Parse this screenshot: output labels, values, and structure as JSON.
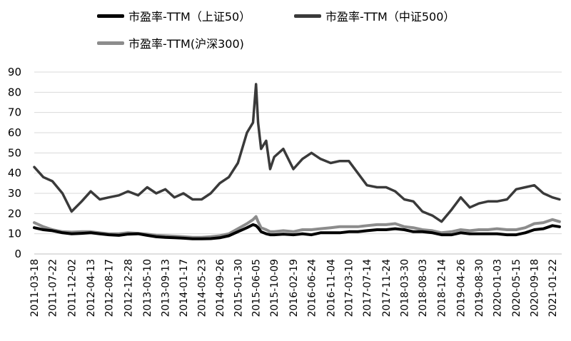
{
  "chart_data": {
    "type": "line",
    "title": "",
    "xlabel": "",
    "ylabel": "",
    "ylim": [
      0,
      90
    ],
    "yticks": [
      0,
      10,
      20,
      30,
      40,
      50,
      60,
      70,
      80,
      90
    ],
    "grid": "horizontal",
    "legend_position": "top",
    "x_tick_labels": [
      "2011-03-18",
      "2011-07-22",
      "2011-12-02",
      "2012-04-13",
      "2012-08-17",
      "2012-12-28",
      "2013-05-10",
      "2013-09-13",
      "2014-01-17",
      "2014-05-23",
      "2014-09-26",
      "2015-01-30",
      "2015-06-05",
      "2015-10-09",
      "2016-02-19",
      "2016-06-24",
      "2016-11-04",
      "2017-03-10",
      "2017-07-14",
      "2017-11-24",
      "2018-03-30",
      "2018-08-03",
      "2018-12-14",
      "2019-04-26",
      "2019-08-30",
      "2020-01-03",
      "2020-05-15",
      "2020-09-18",
      "2021-01-22"
    ],
    "x": [
      "2011-03-18",
      "2011-05-20",
      "2011-07-22",
      "2011-09-30",
      "2011-12-02",
      "2012-02-10",
      "2012-04-13",
      "2012-06-15",
      "2012-08-17",
      "2012-10-26",
      "2012-12-28",
      "2013-03-08",
      "2013-05-10",
      "2013-07-12",
      "2013-09-13",
      "2013-11-15",
      "2014-01-17",
      "2014-03-21",
      "2014-05-23",
      "2014-07-25",
      "2014-09-26",
      "2014-11-28",
      "2015-01-30",
      "2015-04-03",
      "2015-05-15",
      "2015-06-05",
      "2015-06-19",
      "2015-07-10",
      "2015-08-14",
      "2015-09-11",
      "2015-10-09",
      "2015-12-11",
      "2016-02-19",
      "2016-04-22",
      "2016-06-24",
      "2016-08-26",
      "2016-11-04",
      "2017-01-06",
      "2017-03-10",
      "2017-05-12",
      "2017-07-14",
      "2017-09-22",
      "2017-11-24",
      "2018-01-26",
      "2018-03-30",
      "2018-06-01",
      "2018-08-03",
      "2018-10-12",
      "2018-12-14",
      "2019-02-22",
      "2019-04-26",
      "2019-06-28",
      "2019-08-30",
      "2019-11-01",
      "2020-01-03",
      "2020-03-13",
      "2020-05-15",
      "2020-07-17",
      "2020-09-18",
      "2020-11-20",
      "2021-01-22",
      "2021-03-12"
    ],
    "series": [
      {
        "name": "市盈率-TTM（上证50）",
        "color": "#000000",
        "values": [
          13,
          12,
          11.5,
          10.5,
          10,
          10.2,
          10.5,
          10,
          9.5,
          9.2,
          9.8,
          10,
          9.2,
          8.5,
          8.2,
          8,
          7.8,
          7.5,
          7.5,
          7.6,
          8,
          9,
          11,
          13,
          14.5,
          14,
          13,
          11,
          10,
          9.5,
          9.5,
          9.8,
          9.5,
          10,
          9.5,
          10.5,
          10.5,
          10.5,
          11,
          11,
          11.5,
          12,
          12,
          12.5,
          12,
          11,
          11,
          10.5,
          9.5,
          9.5,
          10.5,
          10,
          10,
          10,
          10,
          9.5,
          9.5,
          10.5,
          12,
          12.5,
          14,
          13.5
        ]
      },
      {
        "name": "市盈率-TTM（中证500）",
        "color": "#3a3a3a",
        "values": [
          43,
          38,
          36,
          30,
          21,
          26,
          31,
          27,
          28,
          29,
          31,
          29,
          33,
          30,
          32,
          28,
          30,
          27,
          27,
          30,
          35,
          38,
          45,
          60,
          65,
          84,
          65,
          52,
          56,
          42,
          48,
          52,
          42,
          47,
          50,
          47,
          45,
          46,
          46,
          40,
          34,
          33,
          33,
          31,
          27,
          26,
          21,
          19,
          16,
          22,
          28,
          23,
          25,
          26,
          26,
          27,
          32,
          33,
          34,
          30,
          28,
          27
        ]
      },
      {
        "name": "市盈率-TTM(沪深300)",
        "color": "#8c8c8c",
        "values": [
          15.5,
          13.5,
          12,
          11,
          10.8,
          11,
          11,
          10.5,
          10,
          10,
          10.5,
          10.2,
          9.8,
          9.2,
          9,
          8.8,
          8.5,
          8.2,
          8.2,
          8.5,
          9,
          10,
          12.5,
          15,
          17,
          18.5,
          16,
          13,
          12,
          11,
          11,
          11.5,
          11,
          12,
          12,
          12.5,
          13,
          13.5,
          13.5,
          13.5,
          14,
          14.5,
          14.5,
          15,
          13.5,
          13,
          12,
          11.5,
          10.5,
          11,
          12,
          11.5,
          12,
          12,
          12.5,
          12,
          12,
          13,
          15,
          15.5,
          17,
          16
        ]
      }
    ]
  }
}
